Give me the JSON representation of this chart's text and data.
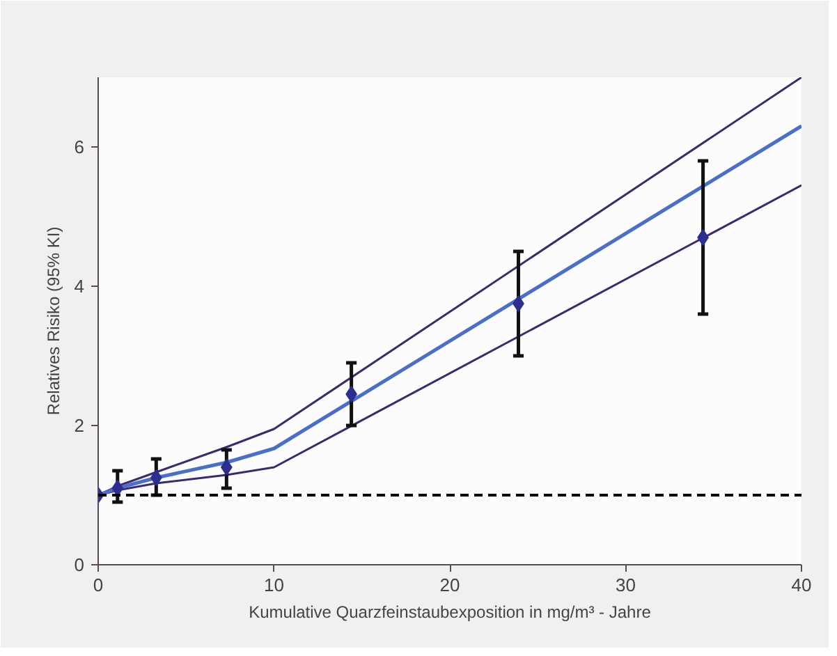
{
  "chart_data": {
    "type": "scatter",
    "xlabel": "Kumulative Quarzfeinstaubexposition in mg/m³ - Jahre",
    "ylabel": "Relatives Risiko (95% KI)",
    "xlim": [
      0,
      40
    ],
    "xticks": [
      0,
      10,
      20,
      30,
      40
    ],
    "ylim": [
      0,
      7
    ],
    "yticks": [
      0,
      2,
      4,
      6
    ],
    "grid": false,
    "series": [
      {
        "type": "line",
        "color": "#3b2a72",
        "x": [
          0,
          1.1,
          3.3,
          7.3,
          10,
          40
        ],
        "values": [
          1,
          1.13,
          1.33,
          1.69,
          1.95,
          7.0
        ],
        "marker": "none"
      },
      {
        "type": "line",
        "color": "#3b2a72",
        "x": [
          0,
          1.1,
          3.3,
          7.3,
          10,
          40
        ],
        "values": [
          1,
          1.07,
          1.17,
          1.29,
          1.4,
          5.45
        ],
        "marker": "none"
      },
      {
        "type": "line",
        "color": "#4a6fc8",
        "x": [
          0,
          1.1,
          3.3,
          7.3,
          10,
          40
        ],
        "values": [
          1,
          1.1,
          1.25,
          1.47,
          1.67,
          6.3
        ],
        "marker": "none"
      },
      {
        "color": "#2d2f8f",
        "marker": "diamond",
        "x": [
          0,
          1.1,
          3.3,
          7.3,
          14.4,
          23.9,
          34.4
        ],
        "values": [
          1,
          1.1,
          1.25,
          1.4,
          2.45,
          3.75,
          4.7
        ],
        "errors": [
          null,
          [
            0.9,
            1.35
          ],
          [
            1.0,
            1.52
          ],
          [
            1.1,
            1.65
          ],
          [
            2.0,
            2.9
          ],
          [
            3.0,
            4.5
          ],
          [
            3.6,
            5.8
          ]
        ]
      }
    ],
    "ref_lines": [
      {
        "axis": "y",
        "value": 1,
        "color": "#000000",
        "line_style": "dashed"
      }
    ]
  }
}
